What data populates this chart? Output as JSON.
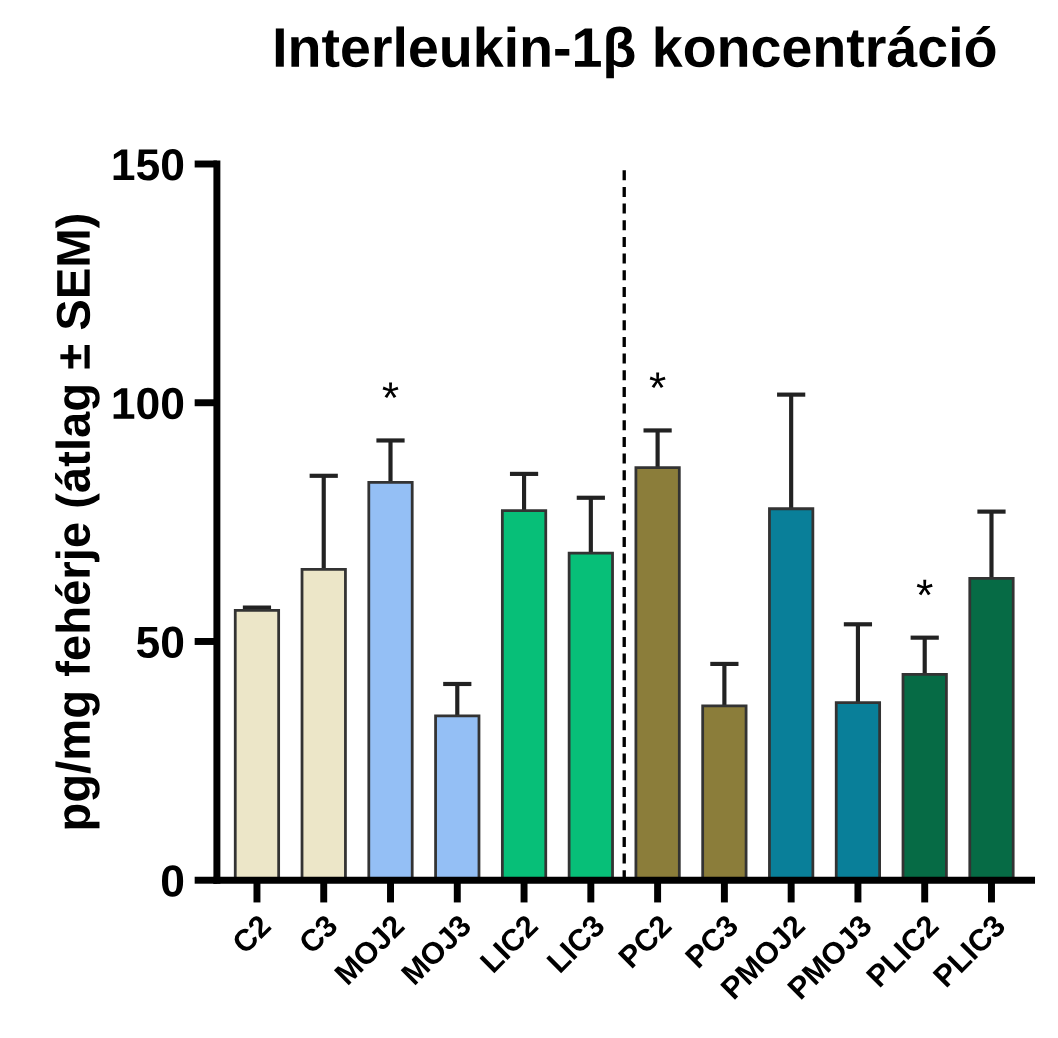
{
  "chart_data": {
    "type": "bar",
    "title": "Interleukin-1β koncentráció",
    "ylabel": "pg/mg fehérje (átlag ± SEM)",
    "categories": [
      "C2",
      "C3",
      "MOJ2",
      "MOJ3",
      "LIC2",
      "LIC3",
      "PC2",
      "PC3",
      "PMOJ2",
      "PMOJ3",
      "PLIC2",
      "PLIC3"
    ],
    "values": [
      56.5,
      65.1,
      83.3,
      34.4,
      77.4,
      68.5,
      86.4,
      36.5,
      77.8,
      37.2,
      43.1,
      63.2
    ],
    "errors": [
      [
        56.5,
        57.1
      ],
      [
        65.1,
        84.7
      ],
      [
        83.3,
        92.1
      ],
      [
        34.4,
        41.1
      ],
      [
        77.4,
        85.1
      ],
      [
        68.5,
        80.1
      ],
      [
        86.4,
        94.2
      ],
      [
        36.5,
        45.3
      ],
      [
        77.8,
        101.7
      ],
      [
        37.2,
        53.6
      ],
      [
        43.1,
        50.8
      ],
      [
        63.2,
        77.2
      ]
    ],
    "value_labels": [
      null,
      null,
      "*",
      null,
      null,
      null,
      "*",
      null,
      null,
      null,
      "*",
      null
    ],
    "colors": [
      "#ece6c8",
      "#ece6c8",
      "#94bff5",
      "#94bff5",
      "#07bf78",
      "#07bf78",
      "#8b7d3a",
      "#8b7d3a",
      "#097f99",
      "#097f99",
      "#066b45",
      "#066b45"
    ],
    "ylim": [
      0,
      150
    ],
    "yticks": [
      0,
      50,
      100,
      150
    ],
    "grid": false,
    "legend": false,
    "line_style": "dashed"
  }
}
